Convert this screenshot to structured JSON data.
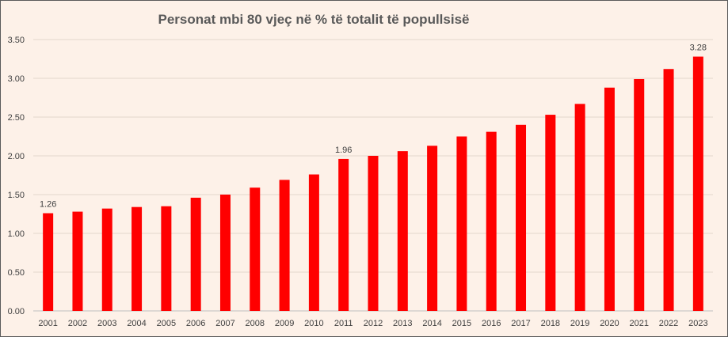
{
  "chart_data": {
    "type": "bar",
    "title": "Personat mbi 80 vjeç në % të totalit të popullsisë",
    "xlabel": "",
    "ylabel": "",
    "ylim": [
      0,
      3.5
    ],
    "yticks": [
      "0.00",
      "0.50",
      "1.00",
      "1.50",
      "2.00",
      "2.50",
      "3.00",
      "3.50"
    ],
    "grid": true,
    "bar_color": "#ff0000",
    "categories": [
      "2001",
      "2002",
      "2003",
      "2004",
      "2005",
      "2006",
      "2007",
      "2008",
      "2009",
      "2010",
      "2011",
      "2012",
      "2013",
      "2014",
      "2015",
      "2016",
      "2017",
      "2018",
      "2019",
      "2020",
      "2021",
      "2022",
      "2023"
    ],
    "values": [
      1.26,
      1.28,
      1.32,
      1.34,
      1.35,
      1.46,
      1.5,
      1.59,
      1.69,
      1.76,
      1.96,
      2.0,
      2.06,
      2.13,
      2.25,
      2.31,
      2.4,
      2.53,
      2.67,
      2.88,
      2.99,
      3.12,
      3.28
    ],
    "data_labels": [
      {
        "category": "2001",
        "text": "1.26"
      },
      {
        "category": "2011",
        "text": "1.96"
      },
      {
        "category": "2023",
        "text": "3.28"
      }
    ]
  }
}
